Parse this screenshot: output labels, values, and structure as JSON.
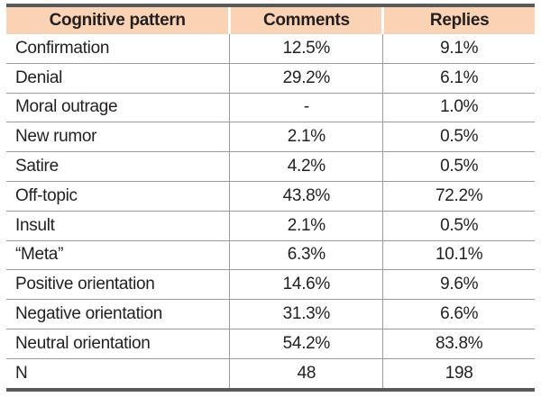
{
  "chart_data": {
    "type": "table",
    "title": "",
    "columns": [
      "Cognitive pattern",
      "Comments",
      "Replies"
    ],
    "rows": [
      [
        "Confirmation",
        "12.5%",
        "9.1%"
      ],
      [
        "Denial",
        "29.2%",
        "6.1%"
      ],
      [
        "Moral outrage",
        "-",
        "1.0%"
      ],
      [
        "New rumor",
        "2.1%",
        "0.5%"
      ],
      [
        "Satire",
        "4.2%",
        "0.5%"
      ],
      [
        "Off-topic",
        "43.8%",
        "72.2%"
      ],
      [
        "Insult",
        "2.1%",
        "0.5%"
      ],
      [
        "“Meta”",
        "6.3%",
        "10.1%"
      ],
      [
        "Positive orientation",
        "14.6%",
        "9.6%"
      ],
      [
        "Negative orientation",
        "31.3%",
        "6.6%"
      ],
      [
        "Neutral orientation",
        "54.2%",
        "83.8%"
      ],
      [
        "N",
        "48",
        "198"
      ]
    ]
  },
  "colors": {
    "header_bg": "#F9D3B3",
    "header_divider": "#FFFFFF",
    "outer_border": "#58595B",
    "grid_line": "#989A9D",
    "text": "#231F20",
    "page_bg": "#FFFFFF"
  }
}
